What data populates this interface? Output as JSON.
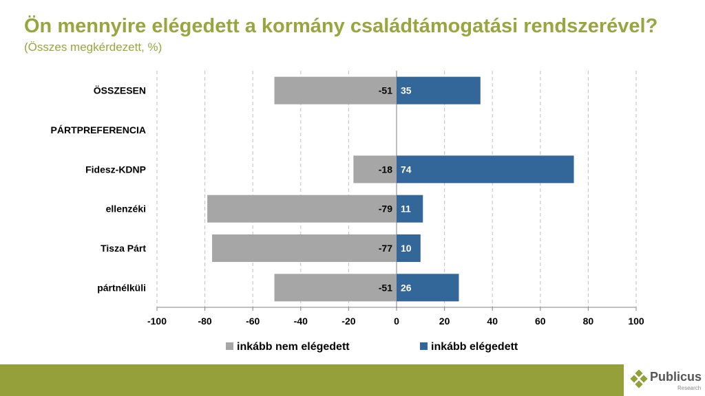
{
  "chart_data": {
    "type": "bar",
    "title": "Ön mennyire elégedett a kormány családtámogatási rendszerével?",
    "subtitle": "(Összes megkérdezett, %)",
    "categories": [
      "ÖSSZESEN",
      "PÁRTPREFERENCIA",
      "Fidesz-KDNP",
      "ellenzéki",
      "Tisza Párt",
      "pártnélküli"
    ],
    "series": [
      {
        "name": "inkább nem elégedett",
        "color": "#A6A6A6",
        "values": [
          -51,
          null,
          -18,
          -79,
          -77,
          -51
        ]
      },
      {
        "name": "inkább elégedett",
        "color": "#336699",
        "values": [
          35,
          null,
          74,
          11,
          10,
          26
        ]
      }
    ],
    "xlim": [
      -100,
      100
    ],
    "xticks": [
      -100,
      -80,
      -60,
      -40,
      -20,
      0,
      20,
      40,
      60,
      80,
      100
    ],
    "grid": true,
    "legend": "bottom"
  },
  "brand": {
    "name": "Publicus",
    "sub": "Research",
    "color": "#95A03B"
  }
}
